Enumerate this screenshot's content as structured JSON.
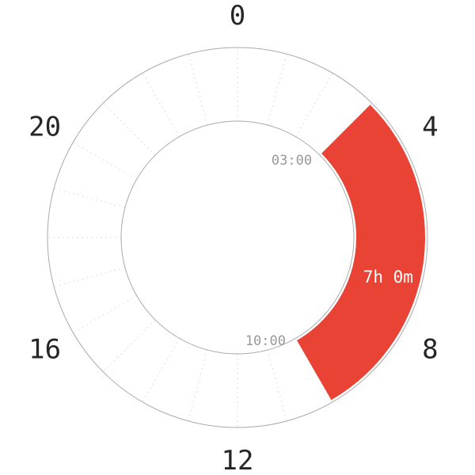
{
  "chart_data": {
    "type": "radial-clock-donut",
    "hour_range": [
      0,
      24
    ],
    "hour_tick_labels": [
      "0",
      "4",
      "8",
      "12",
      "16",
      "20"
    ],
    "gridlines": "dotted, every hour",
    "segments": [
      {
        "start": "03:00",
        "end": "10:00",
        "start_hour": 3,
        "end_hour": 10,
        "duration_label": "7h 0m",
        "color": "#E94335"
      }
    ]
  }
}
